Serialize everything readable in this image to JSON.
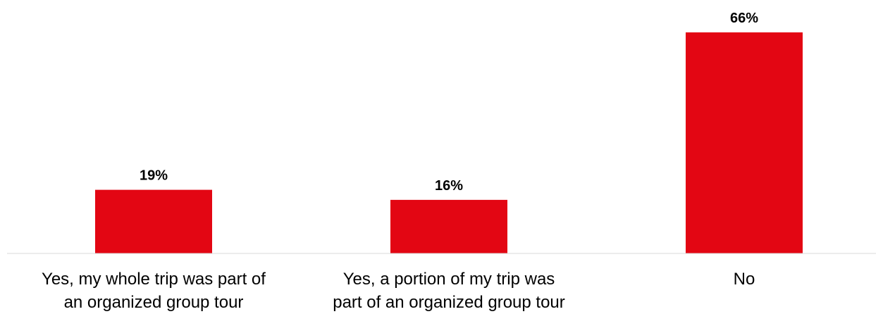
{
  "chart_data": {
    "type": "bar",
    "categories": [
      [
        "Yes, my whole trip was part of",
        "an organized group tour"
      ],
      [
        "Yes, a portion of my trip was",
        "part of an organized group tour"
      ],
      [
        "No"
      ]
    ],
    "values": [
      19,
      16,
      66
    ],
    "value_labels": [
      "19%",
      "16%",
      "66%"
    ],
    "title": "",
    "xlabel": "",
    "ylabel": "",
    "ylim": [
      0,
      66
    ],
    "grid": false,
    "legend": "none",
    "bar_color": "#E30613",
    "axis_color": "#D9D9D9"
  }
}
